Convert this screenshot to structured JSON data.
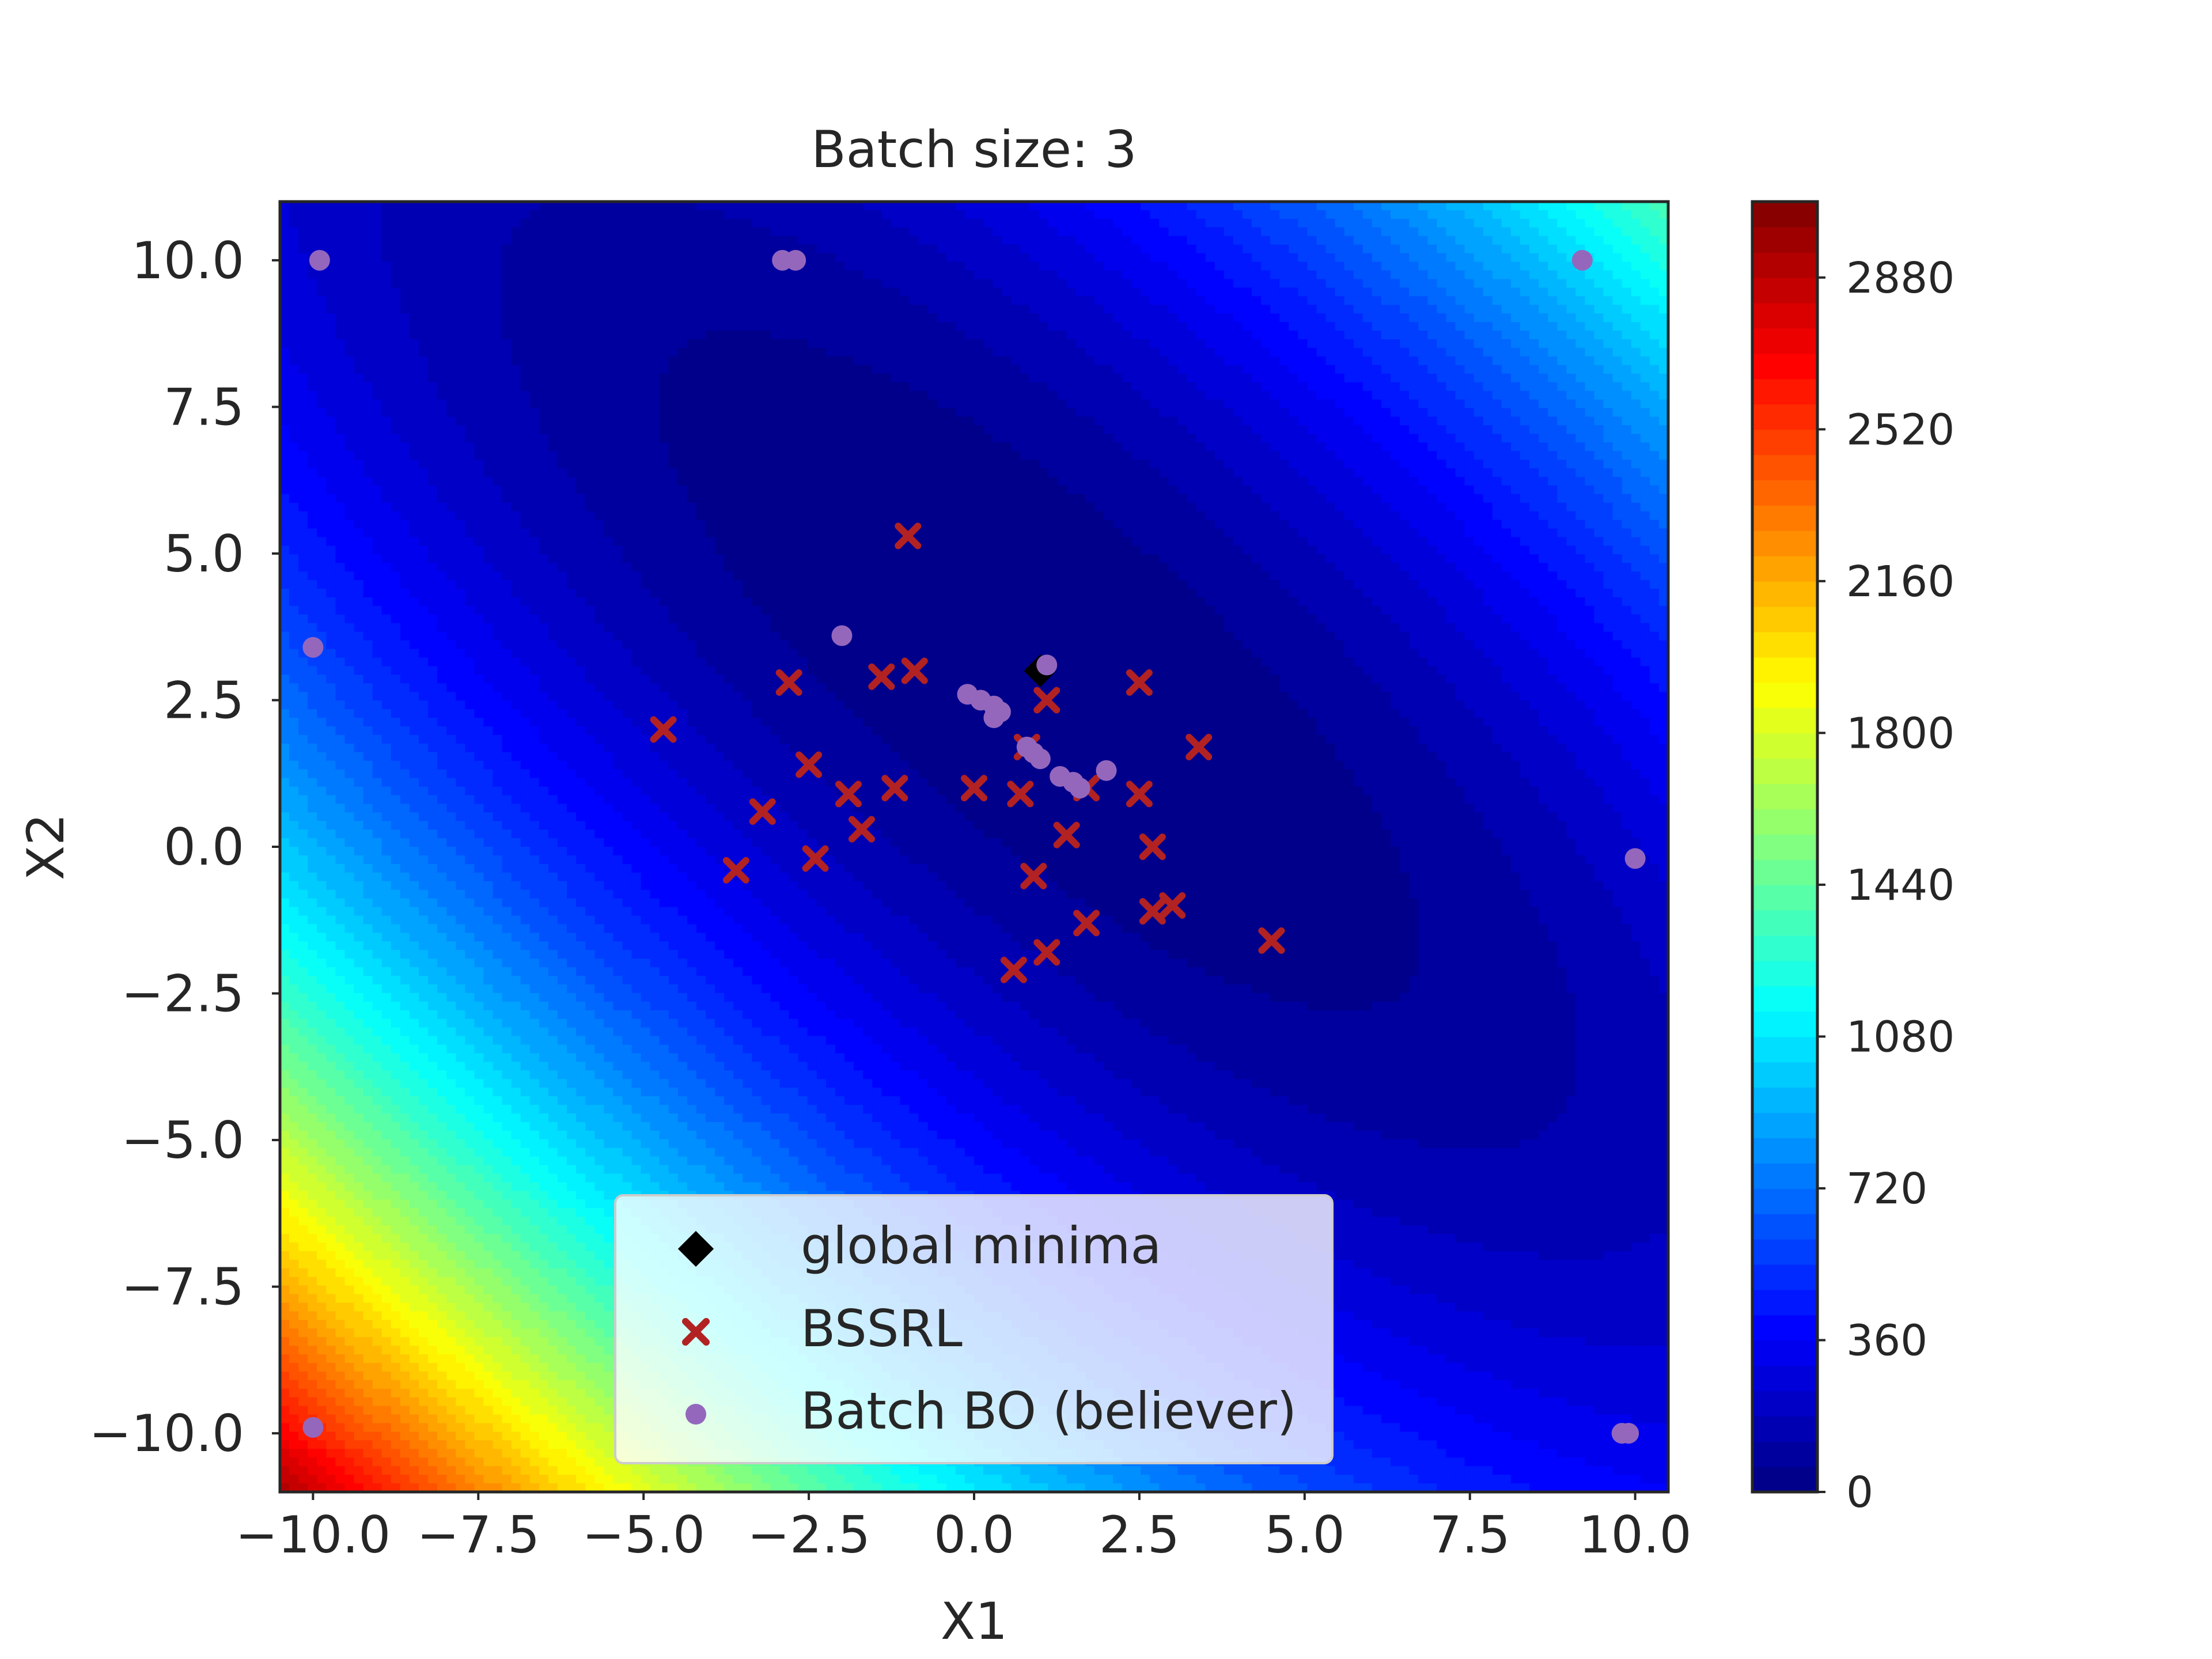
{
  "chart_data": {
    "type": "contour+scatter",
    "title": "Batch size: 3",
    "xlabel": "X1",
    "ylabel": "X2",
    "xlim": [
      -10.5,
      10.5
    ],
    "ylim": [
      -11,
      11
    ],
    "xticks": [
      -10.0,
      -7.5,
      -5.0,
      -2.5,
      0.0,
      2.5,
      5.0,
      7.5,
      10.0
    ],
    "xtick_labels": [
      "−10.0",
      "−7.5",
      "−5.0",
      "−2.5",
      "0.0",
      "2.5",
      "5.0",
      "7.5",
      "10.0"
    ],
    "yticks": [
      10.0,
      7.5,
      5.0,
      2.5,
      0.0,
      -2.5,
      -5.0,
      -7.5,
      -10.0
    ],
    "ytick_labels": [
      "10.0",
      "7.5",
      "5.0",
      "2.5",
      "0.0",
      "−2.5",
      "−5.0",
      "−7.5",
      "−10.0"
    ],
    "contour_function": "Booth: (x1 + 2*x2 - 7)^2 + (2*x1 + x2 - 5)^2",
    "colormap": "jet",
    "colorbar": {
      "min": 0,
      "max": 3060,
      "ticks": [
        0,
        360,
        720,
        1080,
        1440,
        1800,
        2160,
        2520,
        2880
      ],
      "tick_labels": [
        "0",
        "360",
        "720",
        "1080",
        "1440",
        "1800",
        "2160",
        "2520",
        "2880"
      ]
    },
    "legend": {
      "placement": "lower-center",
      "entries": [
        {
          "label": "global minima",
          "marker": "diamond",
          "color": "#000000"
        },
        {
          "label": "BSSRL",
          "marker": "x",
          "color": "#b22222"
        },
        {
          "label": "Batch BO (believer)",
          "marker": "circle",
          "color": "#9467bd"
        }
      ]
    },
    "series": [
      {
        "name": "global minima",
        "marker": "diamond",
        "color": "#000000",
        "points": [
          [
            1.0,
            3.0
          ]
        ]
      },
      {
        "name": "BSSRL",
        "marker": "x",
        "color": "#b22222",
        "points": [
          [
            -1.0,
            5.3
          ],
          [
            -1.4,
            2.9
          ],
          [
            -0.9,
            3.0
          ],
          [
            -2.8,
            2.8
          ],
          [
            -4.7,
            2.0
          ],
          [
            -2.5,
            1.4
          ],
          [
            -1.9,
            0.9
          ],
          [
            -1.2,
            1.0
          ],
          [
            0.0,
            1.0
          ],
          [
            -3.2,
            0.6
          ],
          [
            -1.7,
            0.3
          ],
          [
            -3.6,
            -0.4
          ],
          [
            -2.4,
            -0.2
          ],
          [
            1.1,
            2.5
          ],
          [
            2.5,
            2.8
          ],
          [
            0.7,
            0.9
          ],
          [
            0.8,
            1.7
          ],
          [
            1.4,
            0.2
          ],
          [
            1.7,
            1.0
          ],
          [
            2.5,
            0.9
          ],
          [
            2.7,
            0.0
          ],
          [
            3.4,
            1.7
          ],
          [
            0.9,
            -0.5
          ],
          [
            1.7,
            -1.3
          ],
          [
            2.7,
            -1.1
          ],
          [
            3.0,
            -1.0
          ],
          [
            1.1,
            -1.8
          ],
          [
            0.6,
            -2.1
          ],
          [
            4.5,
            -1.6
          ]
        ]
      },
      {
        "name": "Batch BO (believer)",
        "marker": "circle",
        "color": "#9467bd",
        "points": [
          [
            -9.9,
            10.0
          ],
          [
            -2.9,
            10.0
          ],
          [
            -2.7,
            10.0
          ],
          [
            9.2,
            10.0
          ],
          [
            -10.0,
            3.4
          ],
          [
            -2.0,
            3.6
          ],
          [
            1.1,
            3.1
          ],
          [
            -0.1,
            2.6
          ],
          [
            0.1,
            2.5
          ],
          [
            0.3,
            2.4
          ],
          [
            0.4,
            2.3
          ],
          [
            0.3,
            2.2
          ],
          [
            0.8,
            1.7
          ],
          [
            0.9,
            1.6
          ],
          [
            1.0,
            1.5
          ],
          [
            1.3,
            1.2
          ],
          [
            1.5,
            1.1
          ],
          [
            1.6,
            1.0
          ],
          [
            2.0,
            1.3
          ],
          [
            10.0,
            -0.2
          ],
          [
            -10.0,
            -9.9
          ],
          [
            9.8,
            -10.0
          ],
          [
            9.9,
            -10.0
          ]
        ]
      }
    ],
    "grid": false
  }
}
